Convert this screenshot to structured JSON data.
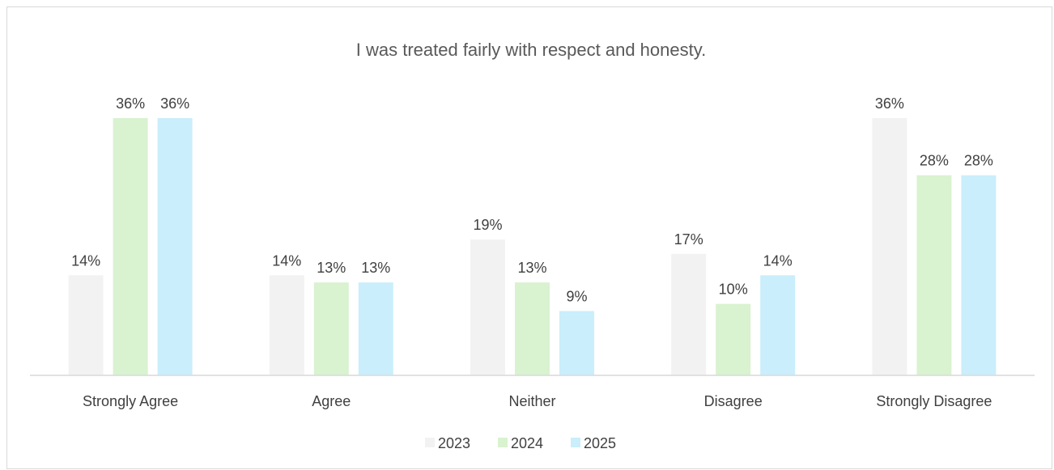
{
  "chart_data": {
    "type": "bar",
    "title": "I was treated fairly with respect and honesty.",
    "xlabel": "",
    "ylabel": "",
    "categories": [
      "Strongly Agree",
      "Agree",
      "Neither",
      "Disagree",
      "Strongly Disagree"
    ],
    "series": [
      {
        "name": "2023",
        "color": "#f2f2f2",
        "values": [
          14,
          14,
          19,
          17,
          36
        ],
        "labels": [
          "14%",
          "14%",
          "19%",
          "17%",
          "36%"
        ]
      },
      {
        "name": "2024",
        "color": "#d9f2d0",
        "values": [
          36,
          13,
          13,
          10,
          28
        ],
        "labels": [
          "36%",
          "13%",
          "13%",
          "10%",
          "28%"
        ]
      },
      {
        "name": "2025",
        "color": "#caeefb",
        "values": [
          36,
          13,
          9,
          14,
          28
        ],
        "labels": [
          "36%",
          "13%",
          "9%",
          "14%",
          "28%"
        ]
      }
    ],
    "ylim": [
      0,
      36
    ],
    "grid": false,
    "legend_position": "bottom",
    "axis_color": "#d9d9d9"
  }
}
